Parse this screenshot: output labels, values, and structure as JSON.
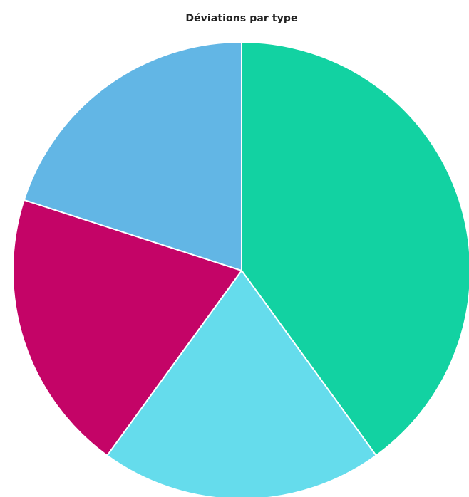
{
  "chart_data": {
    "type": "pie",
    "title": "Déviations par type",
    "slices": [
      {
        "value": 40,
        "color": "#12d2a2"
      },
      {
        "value": 20,
        "color": "#65dcec"
      },
      {
        "value": 20,
        "color": "#c40467"
      },
      {
        "value": 20,
        "color": "#62b6e5"
      }
    ],
    "start_angle_deg": 0,
    "direction": "clockwise",
    "slice_border_color": "#ffffff"
  }
}
